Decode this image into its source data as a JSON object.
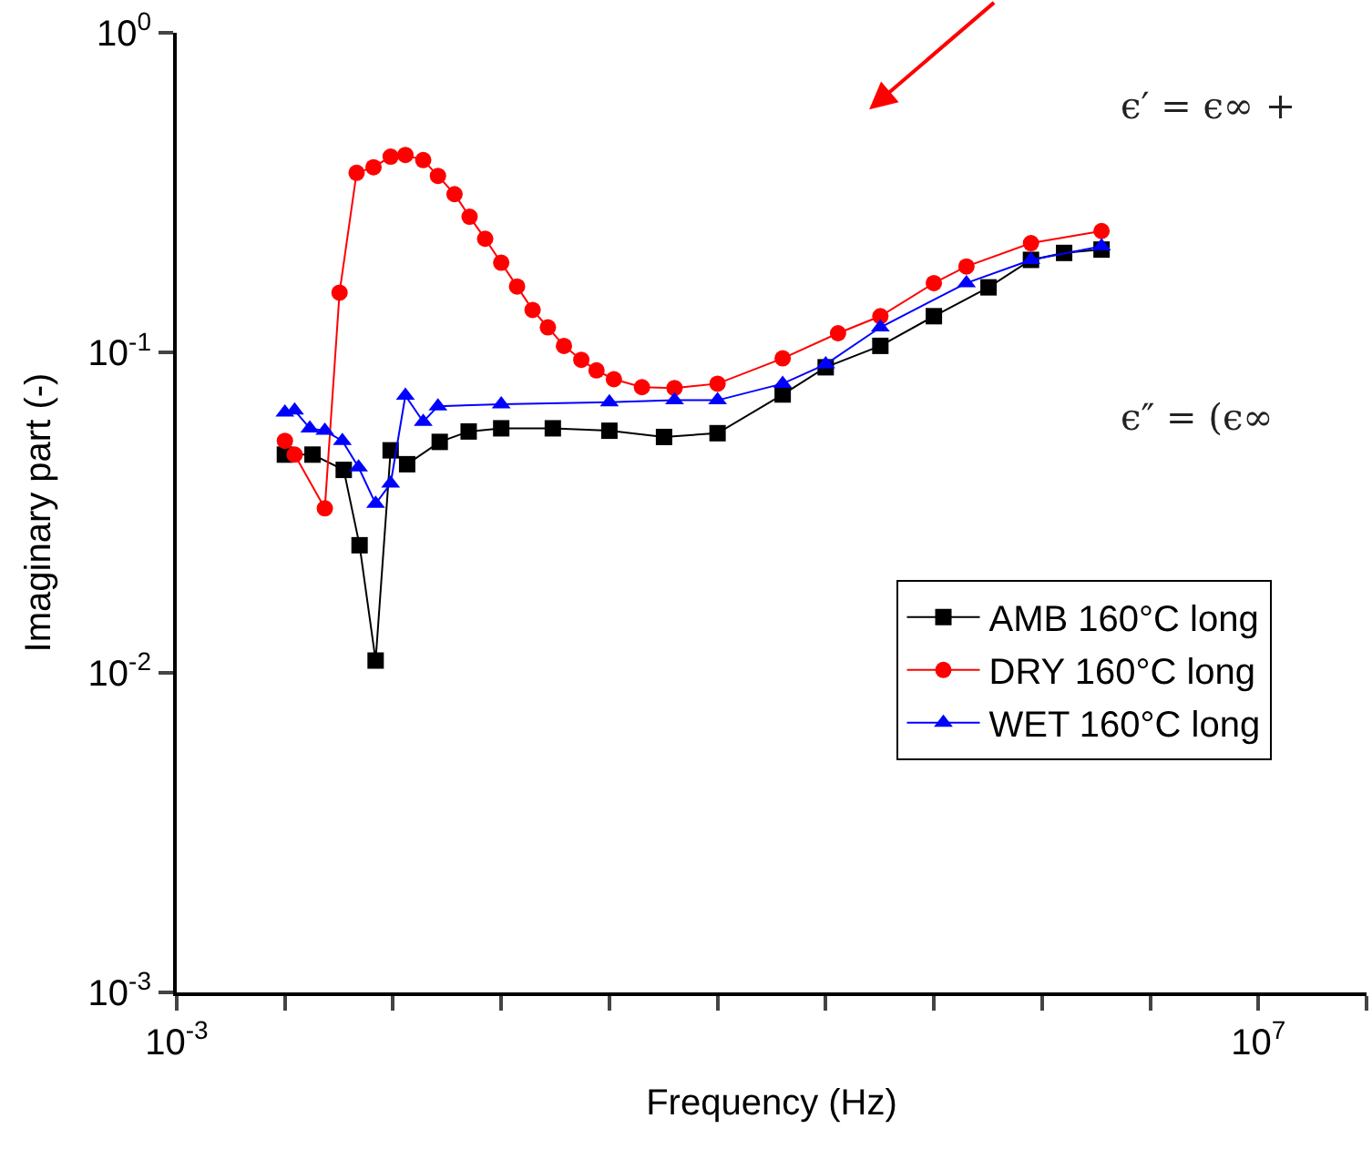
{
  "chart_data": {
    "type": "line",
    "xlabel": "Frequency (Hz)",
    "ylabel": "Imaginary part (-)",
    "log": "xy",
    "legend": "right",
    "line_style": "solid",
    "xlim": [
      0.001,
      100000000
    ],
    "ylim": [
      0.001,
      1
    ],
    "xticks": [
      {
        "value": 0.001,
        "label": "10$^{-3}$"
      },
      {
        "value": 0.01,
        "label": null
      },
      {
        "value": 0.1,
        "label": null
      },
      {
        "value": 1,
        "label": null
      },
      {
        "value": 10,
        "label": null
      },
      {
        "value": 100,
        "label": null
      },
      {
        "value": 1000,
        "label": null
      },
      {
        "value": 10000,
        "label": null
      },
      {
        "value": 100000,
        "label": null
      },
      {
        "value": 1000000,
        "label": null
      },
      {
        "value": 10000000,
        "label": "10$^{7}$"
      },
      {
        "value": 100000000,
        "label": null
      }
    ],
    "yticks": [
      {
        "value": 0.001,
        "label": "10$^{-3}$"
      },
      {
        "value": 0.01,
        "label": "10$^{-2}$"
      },
      {
        "value": 0.1,
        "label": "10$^{-1}$"
      },
      {
        "value": 1,
        "label": "10$^{0}$"
      }
    ],
    "series": [
      {
        "name": "AMB 160°C long",
        "color": "#000000",
        "marker": "square",
        "x": [
          0.01,
          0.018,
          0.035,
          0.049,
          0.069,
          0.095,
          0.135,
          0.27,
          0.5,
          1,
          3,
          10,
          32,
          100,
          400,
          1000,
          3200,
          10000,
          32000,
          79000,
          160000,
          355000
        ],
        "values": [
          0.048,
          0.048,
          0.043,
          0.025,
          0.0109,
          0.0495,
          0.0448,
          0.0526,
          0.0567,
          0.058,
          0.058,
          0.057,
          0.0545,
          0.056,
          0.074,
          0.09,
          0.105,
          0.13,
          0.16,
          0.195,
          0.205,
          0.21
        ]
      },
      {
        "name": "DRY 160°C long",
        "color": "#ff0000",
        "marker": "circle",
        "x": [
          0.01,
          0.0123,
          0.0234,
          0.032,
          0.046,
          0.066,
          0.095,
          0.13,
          0.19,
          0.26,
          0.37,
          0.51,
          0.71,
          1,
          1.4,
          1.95,
          2.7,
          3.8,
          5.5,
          7.6,
          11,
          20,
          40,
          100,
          400,
          1300,
          3200,
          10000,
          20000,
          79000,
          355000
        ],
        "values": [
          0.053,
          0.048,
          0.0326,
          0.154,
          0.365,
          0.38,
          0.41,
          0.415,
          0.4,
          0.357,
          0.313,
          0.266,
          0.227,
          0.191,
          0.161,
          0.136,
          0.12,
          0.105,
          0.095,
          0.088,
          0.0826,
          0.078,
          0.0775,
          0.08,
          0.096,
          0.115,
          0.13,
          0.165,
          0.186,
          0.22,
          0.24
        ]
      },
      {
        "name": "WET 160°C long",
        "color": "#0000ff",
        "marker": "triangle",
        "x": [
          0.01,
          0.0123,
          0.017,
          0.0234,
          0.034,
          0.048,
          0.069,
          0.095,
          0.13,
          0.19,
          0.26,
          1,
          10,
          40,
          100,
          400,
          1000,
          3200,
          20000,
          79000,
          355000
        ],
        "values": [
          0.065,
          0.066,
          0.058,
          0.057,
          0.053,
          0.0438,
          0.0337,
          0.039,
          0.0734,
          0.0608,
          0.068,
          0.069,
          0.07,
          0.071,
          0.071,
          0.08,
          0.092,
          0.12,
          0.165,
          0.195,
          0.215
        ]
      }
    ],
    "annotations": [
      "ϵ′ = ϵ∞ +",
      "ϵ″ = (ϵ∞"
    ]
  }
}
